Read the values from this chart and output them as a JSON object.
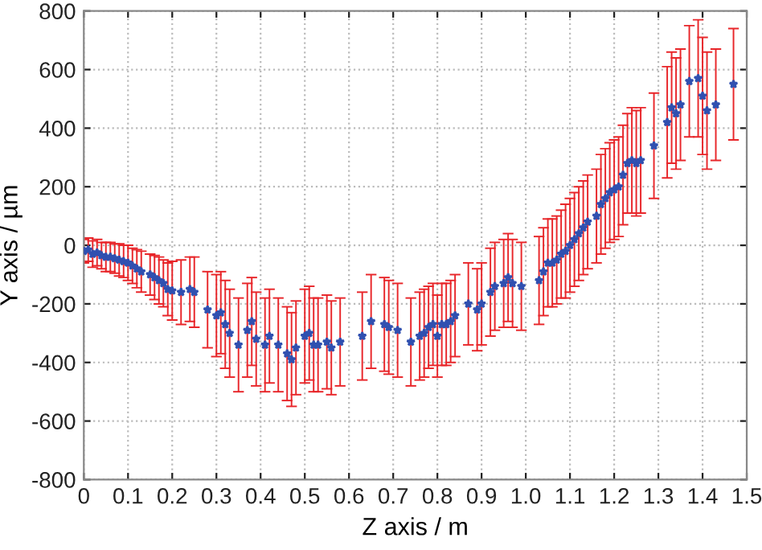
{
  "chart_data": {
    "type": "scatter",
    "xlabel": "Z axis / m",
    "ylabel": "Y axis / µm",
    "xlim": [
      0,
      1.5
    ],
    "ylim": [
      -800,
      800
    ],
    "xticks": [
      0,
      {
        "value": 0.1,
        "label": "0.1"
      },
      {
        "value": 0.2,
        "label": "0.2"
      },
      {
        "value": 0.3,
        "label": "0.3"
      },
      {
        "value": 0.4,
        "label": "0.4"
      },
      {
        "value": 0.5,
        "label": "0.5"
      },
      {
        "value": 0.6,
        "label": "0.6"
      },
      {
        "value": 0.7,
        "label": "0.7"
      },
      {
        "value": 0.8,
        "label": "0.8"
      },
      {
        "value": 0.9,
        "label": "0.9"
      },
      {
        "value": 1.0,
        "label": "1.0"
      },
      {
        "value": 1.1,
        "label": "1.1"
      },
      {
        "value": 1.2,
        "label": "1.2"
      },
      {
        "value": 1.3,
        "label": "1.3"
      },
      {
        "value": 1.4,
        "label": "1.4"
      },
      {
        "value": 1.5,
        "label": "1.5"
      }
    ],
    "yticks": [
      800,
      600,
      400,
      200,
      0,
      -200,
      -400,
      -600,
      -800
    ],
    "grid": true,
    "marker": "star",
    "legend": false,
    "series": [
      {
        "color": "#3050b0",
        "x": [
          0.0,
          0.01,
          0.02,
          0.03,
          0.04,
          0.05,
          0.06,
          0.07,
          0.08,
          0.09,
          0.1,
          0.11,
          0.12,
          0.13,
          0.15,
          0.16,
          0.17,
          0.18,
          0.19,
          0.2,
          0.22,
          0.24,
          0.25,
          0.28,
          0.3,
          0.31,
          0.32,
          0.33,
          0.35,
          0.37,
          0.38,
          0.39,
          0.41,
          0.42,
          0.44,
          0.46,
          0.47,
          0.48,
          0.5,
          0.51,
          0.52,
          0.53,
          0.55,
          0.56,
          0.58,
          0.63,
          0.65,
          0.68,
          0.69,
          0.71,
          0.74,
          0.76,
          0.77,
          0.78,
          0.79,
          0.8,
          0.81,
          0.82,
          0.83,
          0.84,
          0.87,
          0.89,
          0.9,
          0.92,
          0.93,
          0.95,
          0.96,
          0.97,
          0.99,
          1.03,
          1.04,
          1.05,
          1.06,
          1.07,
          1.08,
          1.09,
          1.1,
          1.11,
          1.12,
          1.13,
          1.14,
          1.16,
          1.17,
          1.18,
          1.19,
          1.2,
          1.21,
          1.22,
          1.23,
          1.24,
          1.25,
          1.26,
          1.29,
          1.32,
          1.33,
          1.34,
          1.35,
          1.37,
          1.39,
          1.4,
          1.41,
          1.43,
          1.47
        ],
        "values": [
          -20,
          -15,
          -30,
          -25,
          -35,
          -40,
          -40,
          -45,
          -50,
          -55,
          -60,
          -70,
          -80,
          -90,
          -100,
          -110,
          -120,
          -130,
          -150,
          -155,
          -160,
          -150,
          -160,
          -220,
          -240,
          -230,
          -270,
          -300,
          -340,
          -290,
          -260,
          -320,
          -340,
          -310,
          -340,
          -370,
          -390,
          -350,
          -310,
          -300,
          -340,
          -340,
          -330,
          -350,
          -330,
          -310,
          -260,
          -270,
          -280,
          -290,
          -330,
          -310,
          -300,
          -280,
          -270,
          -310,
          -270,
          -270,
          -260,
          -240,
          -200,
          -220,
          -200,
          -160,
          -140,
          -130,
          -110,
          -130,
          -140,
          -120,
          -90,
          -60,
          -60,
          -50,
          -30,
          -20,
          0,
          20,
          40,
          60,
          80,
          100,
          140,
          160,
          180,
          190,
          200,
          240,
          280,
          290,
          280,
          290,
          340,
          420,
          470,
          450,
          480,
          560,
          570,
          510,
          460,
          480,
          550
        ],
        "errors": [
          40,
          40,
          45,
          45,
          45,
          50,
          50,
          50,
          55,
          55,
          60,
          60,
          65,
          70,
          70,
          75,
          80,
          80,
          90,
          100,
          110,
          110,
          120,
          130,
          140,
          140,
          150,
          150,
          160,
          160,
          150,
          160,
          160,
          160,
          160,
          160,
          160,
          160,
          160,
          160,
          160,
          160,
          160,
          160,
          150,
          150,
          160,
          160,
          160,
          160,
          150,
          150,
          150,
          140,
          140,
          140,
          140,
          140,
          140,
          140,
          140,
          140,
          140,
          150,
          150,
          150,
          150,
          150,
          150,
          150,
          150,
          150,
          150,
          150,
          150,
          160,
          160,
          160,
          160,
          160,
          160,
          160,
          170,
          170,
          170,
          170,
          170,
          170,
          170,
          180,
          180,
          180,
          180,
          190,
          190,
          190,
          190,
          190,
          200,
          200,
          200,
          190,
          190
        ]
      }
    ]
  }
}
